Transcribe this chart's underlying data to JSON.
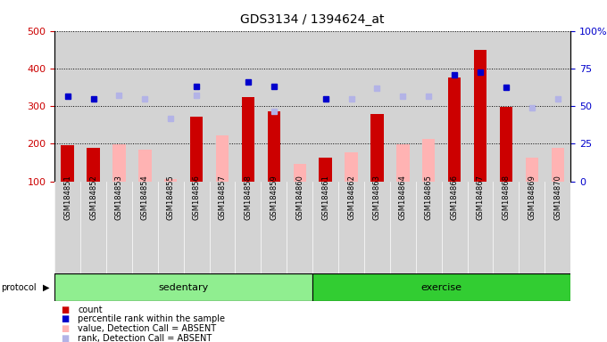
{
  "title": "GDS3134 / 1394624_at",
  "samples": [
    "GSM184851",
    "GSM184852",
    "GSM184853",
    "GSM184854",
    "GSM184855",
    "GSM184856",
    "GSM184857",
    "GSM184858",
    "GSM184859",
    "GSM184860",
    "GSM184861",
    "GSM184862",
    "GSM184863",
    "GSM184864",
    "GSM184865",
    "GSM184866",
    "GSM184867",
    "GSM184868",
    "GSM184869",
    "GSM184870"
  ],
  "count": [
    195,
    190,
    null,
    null,
    null,
    272,
    null,
    323,
    285,
    null,
    163,
    null,
    278,
    null,
    null,
    375,
    450,
    297,
    null,
    null
  ],
  "count_absent": [
    null,
    null,
    198,
    184,
    105,
    null,
    222,
    null,
    null,
    147,
    null,
    178,
    null,
    198,
    213,
    null,
    null,
    null,
    163,
    188
  ],
  "rank": [
    325,
    318,
    null,
    null,
    null,
    352,
    null,
    365,
    352,
    null,
    320,
    null,
    null,
    null,
    null,
    382,
    390,
    350,
    null,
    null
  ],
  "rank_absent": [
    null,
    null,
    328,
    320,
    268,
    328,
    null,
    null,
    287,
    null,
    null,
    320,
    347,
    325,
    325,
    null,
    null,
    null,
    295,
    320
  ],
  "ylim": [
    100,
    500
  ],
  "yticks_left": [
    100,
    200,
    300,
    400,
    500
  ],
  "yticks_right_vals": [
    0,
    25,
    50,
    75,
    100
  ],
  "ytick_labels_right": [
    "0",
    "25",
    "50",
    "75",
    "100%"
  ],
  "color_count": "#cc0000",
  "color_rank": "#0000cc",
  "color_count_absent": "#ffb3b3",
  "color_rank_absent": "#b3b3e6",
  "bg_color": "#d3d3d3",
  "sedentary_color": "#90ee90",
  "exercise_color": "#32cd32",
  "n_sedentary": 10,
  "n_exercise": 10
}
